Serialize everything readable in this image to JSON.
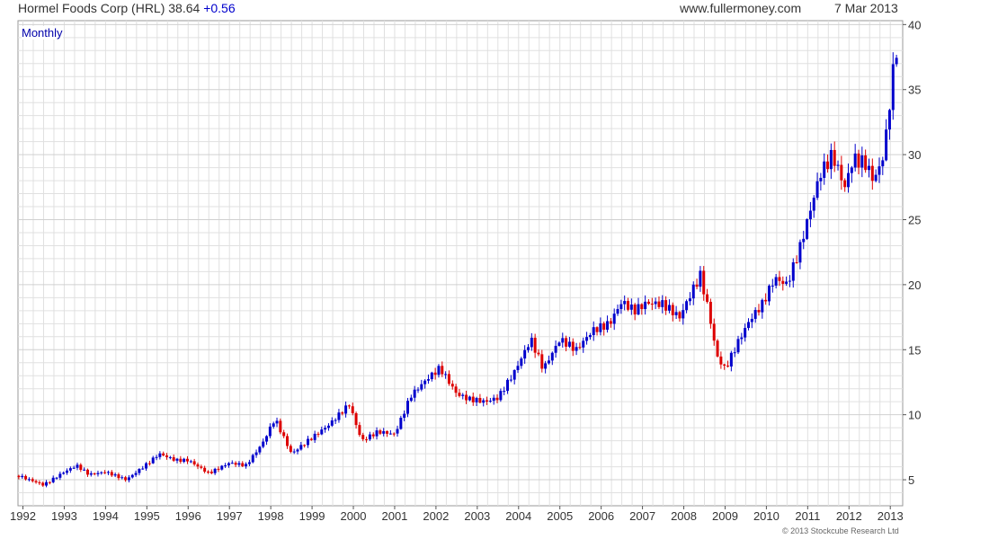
{
  "header": {
    "title": "Hormel Foods Corp (HRL)",
    "price": "38.64",
    "change": "+0.56",
    "site": "www.fullermoney.com",
    "date": "7 Mar 2013"
  },
  "period_label": "Monthly",
  "copyright": "© 2013 Stockcube Research Ltd",
  "colors": {
    "up": "#0000cc",
    "down": "#dd0000",
    "grid": "#e0e0e0",
    "axis": "#555555"
  },
  "chart_data": {
    "type": "candlestick",
    "title": "Hormel Foods Corp (HRL)",
    "period": "Monthly",
    "x_tick_labels": [
      "1992",
      "1993",
      "1994",
      "1995",
      "1996",
      "1997",
      "1998",
      "1999",
      "2000",
      "2001",
      "2002",
      "2003",
      "2004",
      "2005",
      "2006",
      "2007",
      "2008",
      "2009",
      "2010",
      "2011",
      "2012",
      "2013"
    ],
    "y_ticks": [
      5,
      10,
      15,
      20,
      25,
      30,
      35,
      40
    ],
    "ylim": [
      3,
      40.3
    ],
    "xlim": [
      1991.88,
      2013.3
    ],
    "grid": true,
    "y_axis_side": "right",
    "series": [
      {
        "values": [
          [
            1991.9,
            5.3
          ],
          [
            1992.5,
            4.6
          ],
          [
            1993.0,
            5.6
          ],
          [
            1993.3,
            6.1
          ],
          [
            1993.6,
            5.4
          ],
          [
            1994.0,
            5.6
          ],
          [
            1994.5,
            5.0
          ],
          [
            1995.0,
            6.2
          ],
          [
            1995.3,
            7.0
          ],
          [
            1995.7,
            6.5
          ],
          [
            1996.0,
            6.5
          ],
          [
            1996.5,
            5.5
          ],
          [
            1997.0,
            6.3
          ],
          [
            1997.4,
            6.1
          ],
          [
            1997.8,
            7.8
          ],
          [
            1998.1,
            9.7
          ],
          [
            1998.5,
            7.0
          ],
          [
            1998.9,
            8.0
          ],
          [
            1999.4,
            9.2
          ],
          [
            1999.9,
            10.8
          ],
          [
            2000.2,
            8.0
          ],
          [
            2000.6,
            8.7
          ],
          [
            2001.0,
            8.5
          ],
          [
            2001.4,
            11.5
          ],
          [
            2001.8,
            12.8
          ],
          [
            2002.1,
            13.6
          ],
          [
            2002.5,
            11.6
          ],
          [
            2002.8,
            11.2
          ],
          [
            2003.2,
            11.0
          ],
          [
            2003.5,
            11.3
          ],
          [
            2003.9,
            13.3
          ],
          [
            2004.3,
            15.8
          ],
          [
            2004.6,
            13.5
          ],
          [
            2005.0,
            15.8
          ],
          [
            2005.4,
            15.0
          ],
          [
            2005.8,
            16.5
          ],
          [
            2006.2,
            17.0
          ],
          [
            2006.5,
            18.7
          ],
          [
            2006.8,
            18.0
          ],
          [
            2007.1,
            18.6
          ],
          [
            2007.5,
            18.5
          ],
          [
            2007.9,
            17.5
          ],
          [
            2008.2,
            19.5
          ],
          [
            2008.4,
            20.7
          ],
          [
            2008.6,
            18.0
          ],
          [
            2008.8,
            14.5
          ],
          [
            2009.0,
            13.5
          ],
          [
            2009.3,
            15.5
          ],
          [
            2009.6,
            17.3
          ],
          [
            2009.9,
            18.5
          ],
          [
            2010.2,
            20.5
          ],
          [
            2010.5,
            20.0
          ],
          [
            2010.8,
            22.7
          ],
          [
            2011.0,
            25.0
          ],
          [
            2011.3,
            28.5
          ],
          [
            2011.6,
            30.0
          ],
          [
            2011.9,
            27.5
          ],
          [
            2012.1,
            29.7
          ],
          [
            2012.4,
            29.3
          ],
          [
            2012.6,
            28.0
          ],
          [
            2012.8,
            29.5
          ],
          [
            2012.9,
            31.5
          ],
          [
            2013.0,
            34.5
          ],
          [
            2013.1,
            37.2
          ],
          [
            2013.18,
            38.64
          ]
        ]
      }
    ]
  }
}
